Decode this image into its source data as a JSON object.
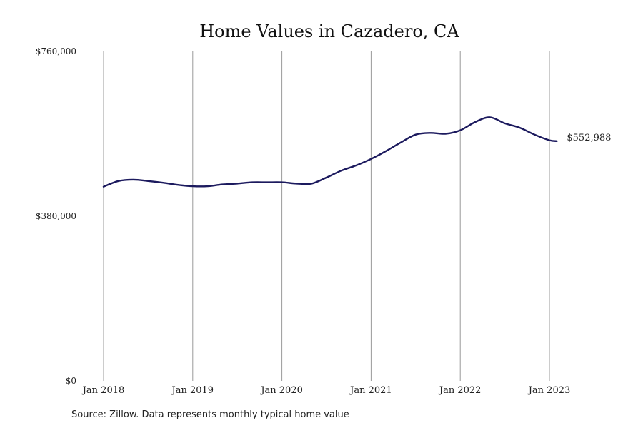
{
  "chart_data": {
    "type": "line",
    "title": "Home Values in Cazadero, CA",
    "xlabel": "",
    "ylabel": "",
    "ylim": [
      0,
      760000
    ],
    "yticks": [
      {
        "value": 0,
        "label": "$0"
      },
      {
        "value": 380000,
        "label": "$380,000"
      },
      {
        "value": 760000,
        "label": "$760,000"
      }
    ],
    "xlim": [
      "2018-01",
      "2023-02"
    ],
    "xticks": [
      {
        "value": "2018-01",
        "label": "Jan 2018"
      },
      {
        "value": "2019-01",
        "label": "Jan 2019"
      },
      {
        "value": "2020-01",
        "label": "Jan 2020"
      },
      {
        "value": "2021-01",
        "label": "Jan 2021"
      },
      {
        "value": "2022-01",
        "label": "Jan 2022"
      },
      {
        "value": "2023-01",
        "label": "Jan 2023"
      }
    ],
    "grid": "vertical",
    "line_color": "#1c1a5e",
    "series": [
      {
        "x": [
          "2018-01",
          "2018-03",
          "2018-05",
          "2018-07",
          "2018-09",
          "2018-11",
          "2019-01",
          "2019-03",
          "2019-05",
          "2019-07",
          "2019-09",
          "2019-11",
          "2020-01",
          "2020-03",
          "2020-05",
          "2020-07",
          "2020-09",
          "2020-11",
          "2021-01",
          "2021-03",
          "2021-05",
          "2021-07",
          "2021-09",
          "2021-11",
          "2022-01",
          "2022-03",
          "2022-05",
          "2022-07",
          "2022-09",
          "2022-11",
          "2023-01",
          "2023-02"
        ],
        "values": [
          448000,
          461000,
          464000,
          461000,
          457000,
          452000,
          449000,
          449000,
          453000,
          455000,
          458000,
          458000,
          458000,
          455000,
          455000,
          469000,
          485000,
          497000,
          512000,
          530000,
          550000,
          568000,
          572000,
          570000,
          578000,
          597000,
          608000,
          594000,
          584000,
          568000,
          555000,
          552988
        ]
      }
    ],
    "end_label": "$552,988"
  },
  "source": "Source: Zillow. Data represents monthly typical home value"
}
